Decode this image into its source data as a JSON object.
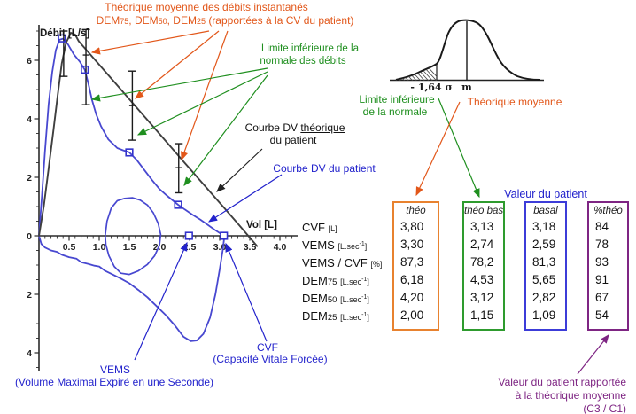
{
  "colors": {
    "orange": "#E2571A",
    "orange_box": "#E8822F",
    "green": "#1F8F1F",
    "green_box": "#2E9B2E",
    "blue": "#2323CC",
    "blue_box": "#3C3CD8",
    "purple": "#7E2583",
    "curve_patient": "#4848D0",
    "curve_theoretical": "#3F3F3F"
  },
  "chart_data": {
    "type": "line",
    "xlabel": "Vol [L]",
    "ylabel": "Débit [L/s]",
    "xlim": [
      0,
      4.3
    ],
    "ylim": [
      -4.7,
      7.3
    ],
    "grid": false,
    "x_ticks": [
      {
        "v": 0.5,
        "label": "0.5"
      },
      {
        "v": 1.0,
        "label": "1.0"
      },
      {
        "v": 1.5,
        "label": "1.5"
      },
      {
        "v": 2.0,
        "label": "2.0"
      },
      {
        "v": 2.5,
        "label": "2.5"
      },
      {
        "v": 3.0,
        "label": "3.0"
      },
      {
        "v": 3.5,
        "label": "3.5"
      },
      {
        "v": 4.0,
        "label": "4.0"
      }
    ],
    "y_ticks": [
      {
        "v": 6,
        "label": "6"
      },
      {
        "v": 4,
        "label": "4"
      },
      {
        "v": 2,
        "label": "2"
      },
      {
        "v": 0,
        "label": "0"
      },
      {
        "v": -2,
        "label": "2"
      },
      {
        "v": -4,
        "label": "4"
      }
    ],
    "series": [
      {
        "id": "patient-expiration",
        "name": "Courbe DV du patient (expiration)",
        "color": "#4848D0",
        "width": 1.8,
        "closed": false,
        "points": [
          [
            0,
            0
          ],
          [
            0.05,
            1.4
          ],
          [
            0.1,
            2.9
          ],
          [
            0.16,
            4.5
          ],
          [
            0.22,
            5.6
          ],
          [
            0.28,
            6.35
          ],
          [
            0.34,
            6.7
          ],
          [
            0.4,
            6.74
          ],
          [
            0.48,
            6.55
          ],
          [
            0.58,
            6.2
          ],
          [
            0.68,
            5.95
          ],
          [
            0.76,
            5.68
          ],
          [
            0.82,
            5.2
          ],
          [
            0.88,
            4.65
          ],
          [
            0.95,
            4.15
          ],
          [
            1.03,
            3.75
          ],
          [
            1.15,
            3.3
          ],
          [
            1.3,
            3.0
          ],
          [
            1.4,
            2.92
          ],
          [
            1.5,
            2.85
          ],
          [
            1.62,
            2.6
          ],
          [
            1.75,
            2.25
          ],
          [
            1.88,
            1.9
          ],
          [
            2.0,
            1.6
          ],
          [
            2.12,
            1.38
          ],
          [
            2.31,
            1.06
          ],
          [
            2.42,
            0.9
          ],
          [
            2.55,
            0.72
          ],
          [
            2.68,
            0.55
          ],
          [
            2.8,
            0.38
          ],
          [
            2.92,
            0.2
          ],
          [
            3.02,
            0.07
          ],
          [
            3.08,
            0
          ]
        ]
      },
      {
        "id": "patient-inspiration",
        "name": "Courbe DV du patient (inspiration)",
        "color": "#4848D0",
        "width": 1.8,
        "closed": false,
        "points": [
          [
            0,
            0
          ],
          [
            0.04,
            -0.28
          ],
          [
            0.1,
            -0.4
          ],
          [
            0.2,
            -0.5
          ],
          [
            0.3,
            -0.55
          ],
          [
            0.38,
            -0.65
          ],
          [
            0.5,
            -0.73
          ],
          [
            0.62,
            -0.78
          ],
          [
            0.7,
            -0.9
          ],
          [
            0.82,
            -0.96
          ],
          [
            0.92,
            -1.02
          ],
          [
            1.0,
            -1.05
          ],
          [
            1.1,
            -1.2
          ],
          [
            1.22,
            -1.32
          ],
          [
            1.35,
            -1.45
          ],
          [
            1.5,
            -1.62
          ],
          [
            1.65,
            -1.85
          ],
          [
            1.8,
            -2.1
          ],
          [
            1.95,
            -2.4
          ],
          [
            2.1,
            -2.7
          ],
          [
            2.25,
            -3.05
          ],
          [
            2.4,
            -3.45
          ],
          [
            2.52,
            -3.6
          ],
          [
            2.62,
            -3.58
          ],
          [
            2.73,
            -3.35
          ],
          [
            2.84,
            -2.8
          ],
          [
            2.93,
            -2.0
          ],
          [
            3.0,
            -1.15
          ],
          [
            3.05,
            -0.5
          ],
          [
            3.08,
            0
          ]
        ]
      },
      {
        "id": "tidal-loop",
        "name": "Boucle de ventilation courante",
        "color": "#4848D0",
        "width": 1.7,
        "closed": true,
        "points": [
          [
            1.1,
            0.02
          ],
          [
            1.13,
            0.5
          ],
          [
            1.2,
            0.95
          ],
          [
            1.3,
            1.2
          ],
          [
            1.42,
            1.28
          ],
          [
            1.55,
            1.3
          ],
          [
            1.68,
            1.22
          ],
          [
            1.8,
            1.05
          ],
          [
            1.9,
            0.78
          ],
          [
            1.98,
            0.42
          ],
          [
            2.02,
            0.05
          ],
          [
            2.0,
            -0.32
          ],
          [
            1.92,
            -0.68
          ],
          [
            1.8,
            -0.98
          ],
          [
            1.65,
            -1.2
          ],
          [
            1.5,
            -1.32
          ],
          [
            1.36,
            -1.28
          ],
          [
            1.25,
            -1.05
          ],
          [
            1.16,
            -0.68
          ],
          [
            1.11,
            -0.3
          ]
        ]
      },
      {
        "id": "theoretical",
        "name": "Courbe DV théorique du patient",
        "color": "#3F3F3F",
        "width": 1.9,
        "closed": false,
        "points": [
          [
            0,
            0
          ],
          [
            0.08,
            1.0
          ],
          [
            0.16,
            2.3
          ],
          [
            0.24,
            3.6
          ],
          [
            0.31,
            4.8
          ],
          [
            0.38,
            5.9
          ],
          [
            0.45,
            6.6
          ],
          [
            0.53,
            6.94
          ],
          [
            0.6,
            6.88
          ],
          [
            0.66,
            6.65
          ],
          [
            1.2,
            5.38
          ],
          [
            1.8,
            3.96
          ],
          [
            2.4,
            2.54
          ],
          [
            3.0,
            1.13
          ],
          [
            3.3,
            0.42
          ],
          [
            3.62,
            -0.35
          ]
        ]
      }
    ],
    "error_bars": [
      {
        "id": "dep",
        "x": 0.41,
        "low": 5.45,
        "mid": null,
        "high": 7.0
      },
      {
        "id": "dem75",
        "x": 0.78,
        "low": 4.48,
        "mid": 6.18,
        "high": 7.05
      },
      {
        "id": "dem50",
        "x": 1.55,
        "low": 3.27,
        "mid": 4.45,
        "high": 5.63
      },
      {
        "id": "dem25",
        "x": 2.32,
        "low": 1.47,
        "mid": 2.33,
        "high": 3.15
      }
    ],
    "point_markers": [
      {
        "id": "dep-patient",
        "x": 0.38,
        "y": 6.75,
        "fill": "none"
      },
      {
        "id": "dem75-patient",
        "x": 0.76,
        "y": 5.68,
        "fill": "none"
      },
      {
        "id": "dem50-patient",
        "x": 1.5,
        "y": 2.85,
        "fill": "none"
      },
      {
        "id": "dem25-patient",
        "x": 2.31,
        "y": 1.06,
        "fill": "none"
      },
      {
        "id": "vems-marker",
        "x": 2.49,
        "y": 0,
        "fill": "#ffffff"
      },
      {
        "id": "cvf-marker",
        "x": 3.07,
        "y": 0,
        "fill": "#ffffff"
      }
    ]
  },
  "notes": {
    "theo_mean": {
      "line1": "Théorique moyenne des débits instantanés",
      "dem1": "DEM",
      "dem1_sub": "75",
      "sep1": ", ",
      "dem2": "DEM",
      "dem2_sub": "50",
      "sep2": ", ",
      "dem3": "DEM",
      "dem3_sub": "25",
      "rest": " (rapportées à la CV du patient)"
    },
    "lower_limit_flows": {
      "line1": "Limite inférieure de la",
      "line2": "normale des débits"
    },
    "dv_theoretical": {
      "pre": "Courbe DV ",
      "underlined": "théorique",
      "line2": "du patient"
    },
    "dv_patient": {
      "label": "Courbe DV du patient"
    },
    "vems": {
      "abbr": "VEMS",
      "full": "(Volume Maximal Expiré en une Seconde)"
    },
    "cvf": {
      "abbr": "CVF",
      "full": "(Capacité Vitale Forcée)"
    },
    "lower_limit_normal": {
      "line1": "Limite inférieure",
      "line2": "de la normale"
    },
    "theo_mean_short": {
      "label": "Théorique moyenne"
    },
    "patient_value": {
      "label": "Valeur du patient"
    },
    "percent_note": {
      "line1": "Valeur du patient rapportée",
      "line2": "à la théorique moyenne",
      "line3": "(C3 / C1)"
    }
  },
  "bell": {
    "sigma_label": "- 1,64 σ",
    "mean_label": "m"
  },
  "table": {
    "rows": [
      {
        "name": "CVF",
        "name_sub": "",
        "unit_pre": "[L",
        "unit_sup": "",
        "unit_post": "]"
      },
      {
        "name": "VEMS",
        "name_sub": "",
        "unit_pre": "[L.sec",
        "unit_sup": "-1",
        "unit_post": "]"
      },
      {
        "name": "VEMS / CVF",
        "name_sub": "",
        "unit_pre": "[%",
        "unit_sup": "",
        "unit_post": "]"
      },
      {
        "name": "DEM",
        "name_sub": "75",
        "unit_pre": "[L.sec",
        "unit_sup": "-1",
        "unit_post": "]"
      },
      {
        "name": "DEM",
        "name_sub": "50",
        "unit_pre": "[L.sec",
        "unit_sup": "-1",
        "unit_post": "]"
      },
      {
        "name": "DEM",
        "name_sub": "25",
        "unit_pre": "[L.sec",
        "unit_sup": "-1",
        "unit_post": "]"
      }
    ],
    "columns": [
      {
        "id": "theo",
        "header": "théo",
        "color": "#E8822F",
        "values": [
          "3,80",
          "3,30",
          "87,3",
          "6,18",
          "4,20",
          "2,00"
        ]
      },
      {
        "id": "theo-bas",
        "header": "théo bas",
        "color": "#2E9B2E",
        "values": [
          "3,13",
          "2,74",
          "78,2",
          "4,53",
          "3,12",
          "1,15"
        ]
      },
      {
        "id": "basal",
        "header": "basal",
        "color": "#3C3CD8",
        "values": [
          "3,18",
          "2,59",
          "81,3",
          "5,65",
          "2,82",
          "1,09"
        ]
      },
      {
        "id": "ptheo",
        "header": "%théo",
        "color": "#7E2583",
        "values": [
          "84",
          "78",
          "93",
          "91",
          "67",
          "54"
        ]
      }
    ]
  }
}
